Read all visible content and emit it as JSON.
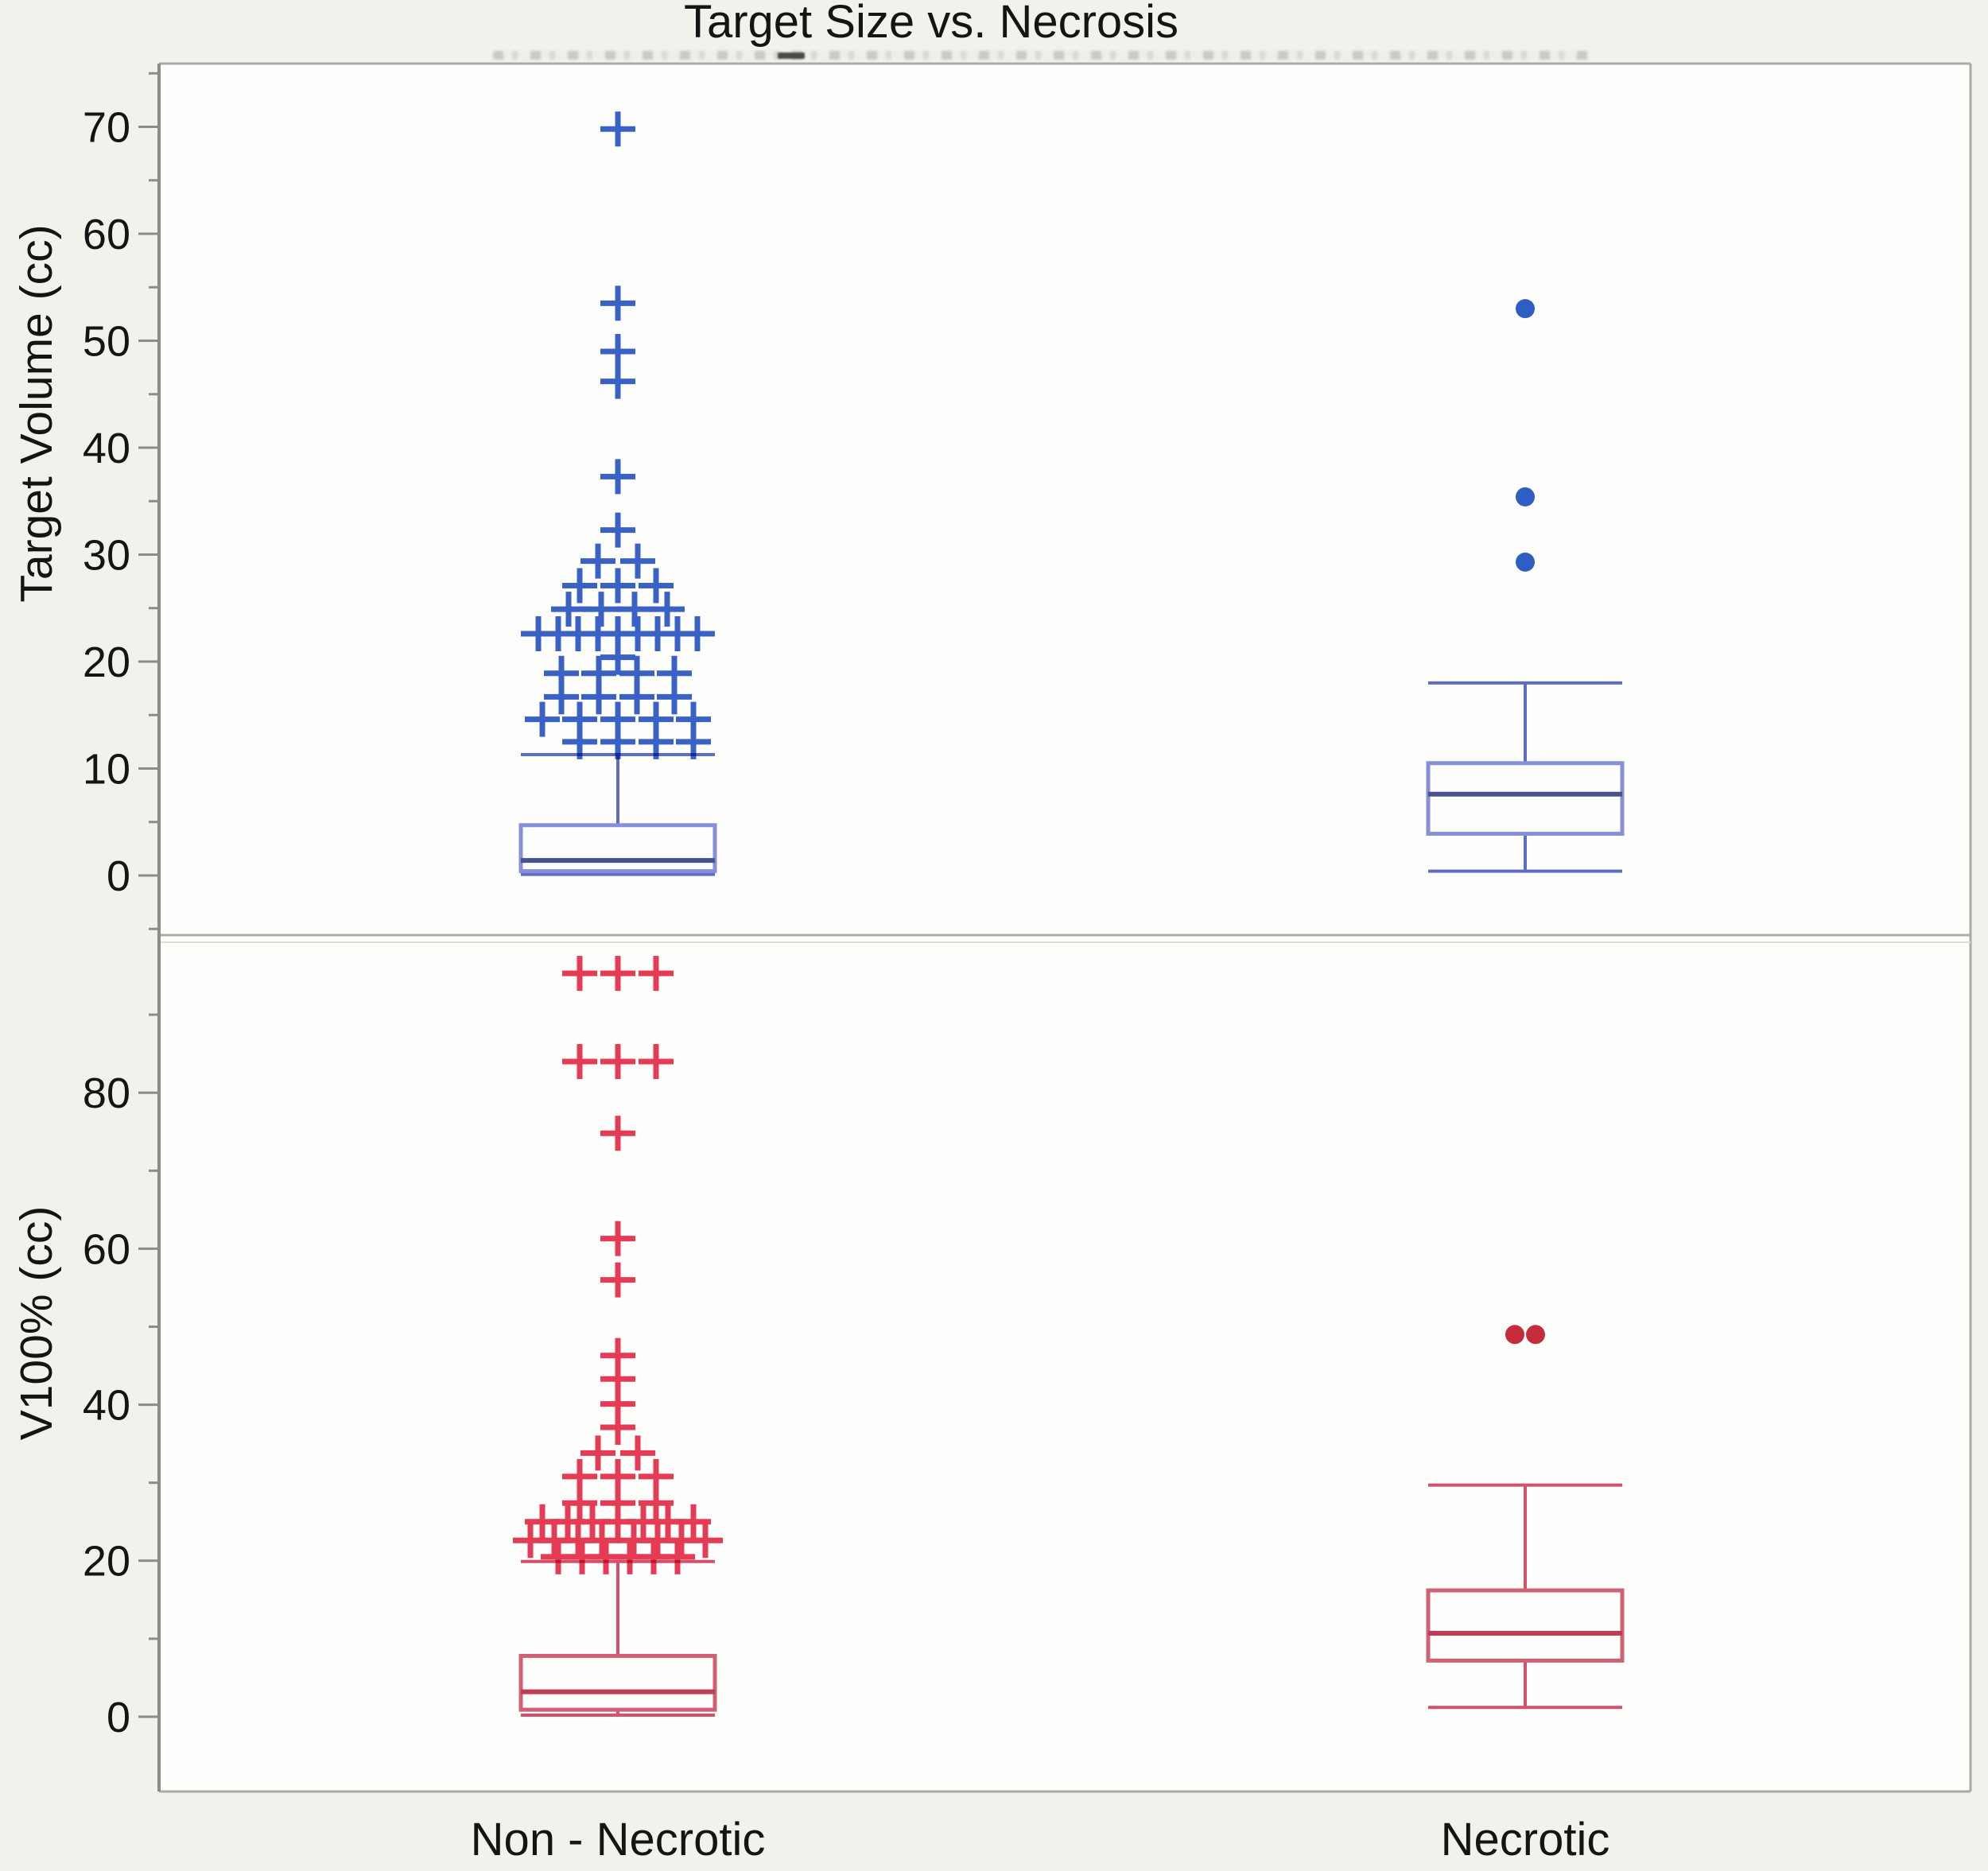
{
  "title": "Target Size vs. Necrosis",
  "background_color": "#F2F1EB",
  "plot_background_color": "#FEFEFD",
  "frame_color": "#ABABA5",
  "axis_color": "#8C8C86",
  "text_color": "#141414",
  "chart_data": [
    {
      "type": "box",
      "panel": "top",
      "title": "Target Size vs. Necrosis",
      "ylabel": "Target Volume (cc)",
      "xlabel": "",
      "categories": [
        "Non - Necrotic",
        "Necrotic"
      ],
      "ylim": [
        -5.6,
        75.9
      ],
      "yticks_major": [
        0,
        10,
        20,
        30,
        40,
        50,
        60,
        70
      ],
      "yticks_minor": [
        -5,
        5,
        15,
        25,
        35,
        45,
        55,
        65,
        75
      ],
      "grid": false,
      "legend": "none",
      "colors": {
        "marker": "#3A62C8",
        "dot": "#2E5EC6",
        "box": "#8690D8",
        "whisker": "#5E6CC4",
        "median": "#46538C"
      },
      "boxes": [
        {
          "category": "Non - Necrotic",
          "min": 0.1,
          "q1": 0.4,
          "median": 1.4,
          "q3": 4.7,
          "max": 11.3
        },
        {
          "category": "Necrotic",
          "min": 0.4,
          "q1": 3.9,
          "median": 7.6,
          "q3": 10.5,
          "max": 18.0
        }
      ],
      "points": [
        {
          "category": "Non - Necrotic",
          "marker": "plus",
          "rows": [
            {
              "v": 69.8,
              "o": [
                0
              ]
            },
            {
              "v": 53.5,
              "o": [
                0
              ]
            },
            {
              "v": 49.0,
              "o": [
                0
              ]
            },
            {
              "v": 46.2,
              "o": [
                0
              ]
            },
            {
              "v": 37.3,
              "o": [
                0
              ]
            },
            {
              "v": 32.3,
              "o": [
                0
              ]
            },
            {
              "v": 29.4,
              "o": [
                -25,
                25
              ]
            },
            {
              "v": 27.1,
              "o": [
                -48,
                0,
                48
              ]
            },
            {
              "v": 24.9,
              "o": [
                -62,
                -21,
                21,
                62
              ]
            },
            {
              "v": 22.6,
              "o": [
                -100,
                -75,
                -50,
                -25,
                0,
                25,
                50,
                75,
                100
              ]
            },
            {
              "v": 20.4,
              "o": [
                0
              ]
            },
            {
              "v": 18.9,
              "o": [
                -71,
                -24,
                24,
                71
              ]
            },
            {
              "v": 16.7,
              "o": [
                -71,
                -24,
                24,
                71
              ]
            },
            {
              "v": 14.6,
              "o": [
                -95,
                -48,
                0,
                48,
                95
              ]
            },
            {
              "v": 12.5,
              "o": [
                -48,
                0,
                48,
                95
              ]
            }
          ]
        },
        {
          "category": "Necrotic",
          "marker": "dot",
          "rows": [
            {
              "v": 53.0,
              "o": [
                0
              ]
            },
            {
              "v": 35.4,
              "o": [
                0
              ]
            },
            {
              "v": 29.3,
              "o": [
                0
              ]
            }
          ]
        }
      ]
    },
    {
      "type": "box",
      "panel": "bottom",
      "title": "",
      "ylabel": "V100% (cc)",
      "xlabel": "",
      "categories": [
        "Non - Necrotic",
        "Necrotic"
      ],
      "ylim": [
        -9.6,
        100.2
      ],
      "yticks_major": [
        0,
        20,
        40,
        60,
        80
      ],
      "yticks_minor": [
        10,
        30,
        50,
        70,
        90
      ],
      "grid": false,
      "legend": "none",
      "colors": {
        "marker": "#E63B54",
        "dot": "#C62B38",
        "box": "#D26074",
        "whisker": "#D5506B",
        "median": "#C23B56"
      },
      "boxes": [
        {
          "category": "Non - Necrotic",
          "min": 0.2,
          "q1": 0.9,
          "median": 3.2,
          "q3": 7.8,
          "max": 19.9
        },
        {
          "category": "Necrotic",
          "min": 1.2,
          "q1": 7.2,
          "median": 10.7,
          "q3": 16.2,
          "max": 29.7
        }
      ],
      "points": [
        {
          "category": "Non - Necrotic",
          "marker": "plus",
          "rows": [
            {
              "v": 95.3,
              "o": [
                -48,
                0,
                48
              ]
            },
            {
              "v": 84.0,
              "o": [
                -48,
                0,
                48
              ]
            },
            {
              "v": 74.8,
              "o": [
                0
              ]
            },
            {
              "v": 61.3,
              "o": [
                0
              ]
            },
            {
              "v": 56.0,
              "o": [
                0
              ]
            },
            {
              "v": 46.3,
              "o": [
                0
              ]
            },
            {
              "v": 43.3,
              "o": [
                0
              ]
            },
            {
              "v": 40.1,
              "o": [
                0
              ]
            },
            {
              "v": 37.1,
              "o": [
                0
              ]
            },
            {
              "v": 33.8,
              "o": [
                -25,
                25
              ]
            },
            {
              "v": 30.8,
              "o": [
                -48,
                0,
                48
              ]
            },
            {
              "v": 27.4,
              "o": [
                -48,
                0,
                48
              ]
            },
            {
              "v": 25.0,
              "o": [
                -95,
                -63,
                -32,
                0,
                32,
                63,
                95
              ]
            },
            {
              "v": 22.6,
              "o": [
                -110,
                -80,
                -50,
                -20,
                20,
                50,
                80,
                110
              ]
            },
            {
              "v": 20.5,
              "o": [
                -75,
                -45,
                -15,
                15,
                45,
                75
              ]
            }
          ]
        },
        {
          "category": "Necrotic",
          "marker": "dot",
          "rows": [
            {
              "v": 49.0,
              "o": [
                -13,
                13
              ]
            }
          ]
        }
      ]
    }
  ]
}
